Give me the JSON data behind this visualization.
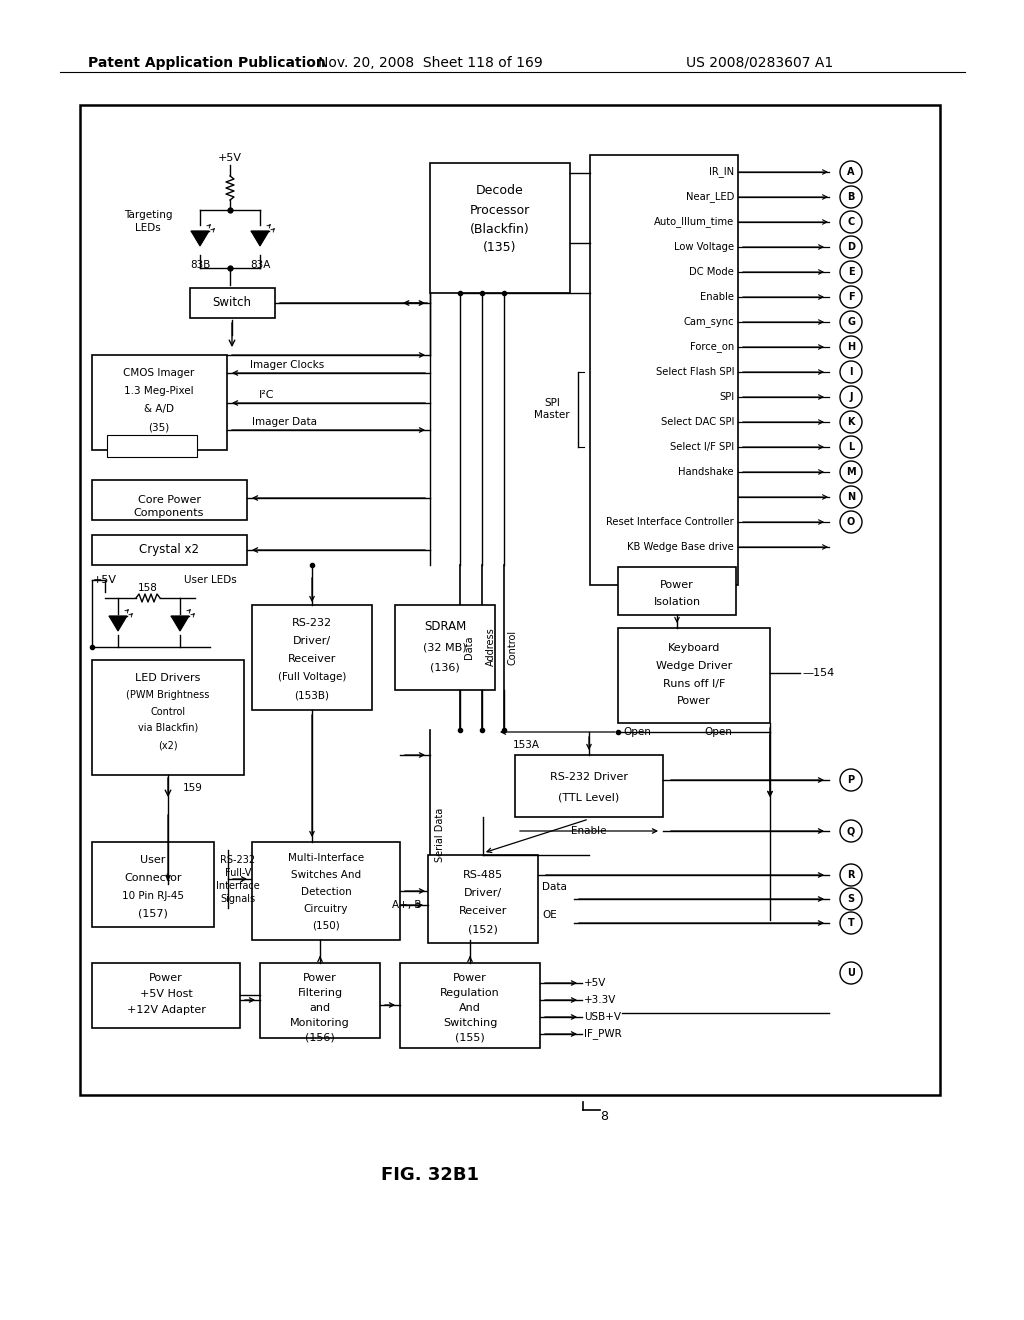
{
  "bg": "#ffffff",
  "header_left": "Patent Application Publication",
  "header_mid": "Nov. 20, 2008  Sheet 118 of 169",
  "header_right": "US 2008/0283607 A1",
  "fig_label": "FIG. 32B1"
}
